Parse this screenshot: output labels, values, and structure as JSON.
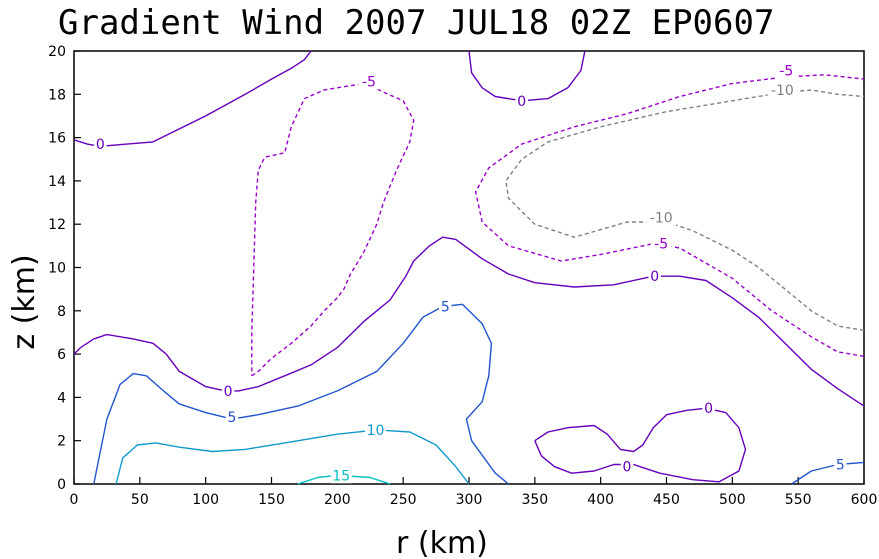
{
  "chart_data": {
    "type": "contour",
    "title": "Gradient Wind 2007 JUL18 02Z  EP0607",
    "xlabel": "r (km)",
    "ylabel": "z (km)",
    "xlim": [
      0,
      600
    ],
    "ylim": [
      0,
      20
    ],
    "x_ticks": [
      "0",
      "50",
      "100",
      "150",
      "200",
      "250",
      "300",
      "350",
      "400",
      "450",
      "500",
      "550",
      "600"
    ],
    "y_ticks": [
      "0",
      "2",
      "4",
      "6",
      "8",
      "10",
      "12",
      "14",
      "16",
      "18",
      "20"
    ],
    "colors": {
      "level_minus_10": "#808080",
      "level_minus_5": "#9900cc",
      "level_0": "#6600bb",
      "level_5": "#2255cc",
      "level_10": "#1199cc",
      "level_15": "#00c0c0"
    },
    "contours": [
      {
        "level": -10,
        "label": "-10",
        "dashed": true,
        "color_key": "level_minus_10",
        "points": [
          [
            600,
            7.1
          ],
          [
            580,
            7.3
          ],
          [
            560,
            8.0
          ],
          [
            540,
            9.0
          ],
          [
            520,
            10.0
          ],
          [
            500,
            10.8
          ],
          [
            470,
            11.7
          ],
          [
            450,
            12.1
          ],
          [
            420,
            12.1
          ],
          [
            380,
            11.4
          ],
          [
            350,
            12.0
          ],
          [
            330,
            13.2
          ],
          [
            328,
            14.0
          ],
          [
            340,
            15.0
          ],
          [
            360,
            15.8
          ],
          [
            400,
            16.5
          ],
          [
            450,
            17.2
          ],
          [
            500,
            17.7
          ],
          [
            540,
            18.1
          ],
          [
            560,
            18.2
          ],
          [
            580,
            18.0
          ],
          [
            600,
            17.9
          ]
        ],
        "labels": [
          {
            "x": 446,
            "y": 12.3,
            "text": "-10"
          },
          {
            "x": 538,
            "y": 18.2,
            "text": "-10"
          }
        ]
      },
      {
        "level": -5,
        "label": "-5",
        "dashed": true,
        "color_key": "level_minus_5",
        "points": [
          [
            600,
            5.9
          ],
          [
            580,
            6.1
          ],
          [
            560,
            6.8
          ],
          [
            530,
            8.0
          ],
          [
            500,
            9.5
          ],
          [
            460,
            10.9
          ],
          [
            440,
            11.1
          ],
          [
            400,
            10.6
          ],
          [
            370,
            10.3
          ],
          [
            330,
            11.0
          ],
          [
            310,
            12.1
          ],
          [
            305,
            13.5
          ],
          [
            315,
            14.6
          ],
          [
            340,
            15.7
          ],
          [
            380,
            16.5
          ],
          [
            420,
            17.1
          ],
          [
            460,
            17.9
          ],
          [
            500,
            18.5
          ],
          [
            540,
            18.8
          ],
          [
            570,
            18.9
          ],
          [
            600,
            18.7
          ]
        ],
        "labels": [
          {
            "x": 446,
            "y": 11.1,
            "text": "-5"
          },
          {
            "x": 541,
            "y": 19.1,
            "text": "-5"
          }
        ]
      },
      {
        "level": -5,
        "label": "-5",
        "dashed": true,
        "color_key": "level_minus_5",
        "points": [
          [
            135,
            5.0
          ],
          [
            140,
            5.2
          ],
          [
            150,
            5.8
          ],
          [
            165,
            6.5
          ],
          [
            180,
            7.3
          ],
          [
            190,
            8.0
          ],
          [
            200,
            8.6
          ],
          [
            205,
            9.0
          ],
          [
            210,
            9.7
          ],
          [
            220,
            10.7
          ],
          [
            230,
            12.0
          ],
          [
            235,
            13.0
          ],
          [
            245,
            14.5
          ],
          [
            255,
            15.8
          ],
          [
            258,
            16.8
          ],
          [
            250,
            17.7
          ],
          [
            235,
            18.1
          ],
          [
            222,
            18.5
          ],
          [
            210,
            18.4
          ],
          [
            190,
            18.2
          ],
          [
            175,
            17.8
          ],
          [
            165,
            16.5
          ],
          [
            160,
            15.3
          ],
          [
            145,
            15.1
          ],
          [
            140,
            14.5
          ],
          [
            138,
            13.0
          ],
          [
            137,
            11.0
          ],
          [
            136,
            9.0
          ],
          [
            135,
            7.0
          ],
          [
            135,
            5.0
          ]
        ],
        "labels": [
          {
            "x": 224,
            "y": 18.6,
            "text": "-5"
          }
        ]
      },
      {
        "level": 0,
        "label": "0",
        "dashed": false,
        "color_key": "level_0",
        "points": [
          [
            0,
            6.0
          ],
          [
            5,
            6.3
          ],
          [
            15,
            6.7
          ],
          [
            25,
            6.9
          ],
          [
            45,
            6.7
          ],
          [
            60,
            6.5
          ],
          [
            70,
            6.0
          ],
          [
            80,
            5.2
          ],
          [
            100,
            4.5
          ],
          [
            115,
            4.3
          ],
          [
            125,
            4.3
          ],
          [
            140,
            4.5
          ],
          [
            160,
            5.0
          ],
          [
            180,
            5.5
          ],
          [
            200,
            6.3
          ],
          [
            220,
            7.5
          ],
          [
            240,
            8.5
          ],
          [
            252,
            9.6
          ],
          [
            258,
            10.3
          ],
          [
            270,
            11.0
          ],
          [
            280,
            11.4
          ],
          [
            290,
            11.3
          ],
          [
            310,
            10.4
          ],
          [
            330,
            9.7
          ],
          [
            350,
            9.3
          ],
          [
            380,
            9.1
          ],
          [
            410,
            9.2
          ],
          [
            440,
            9.6
          ],
          [
            460,
            9.6
          ],
          [
            480,
            9.4
          ],
          [
            500,
            8.6
          ],
          [
            520,
            7.7
          ],
          [
            540,
            6.5
          ],
          [
            560,
            5.3
          ],
          [
            580,
            4.4
          ],
          [
            600,
            3.6
          ]
        ],
        "labels": [
          {
            "x": 117,
            "y": 4.3,
            "text": "0"
          },
          {
            "x": 441,
            "y": 9.6,
            "text": "0"
          }
        ]
      },
      {
        "level": 0,
        "label": "0",
        "dashed": false,
        "color_key": "level_0",
        "points": [
          [
            0,
            15.9
          ],
          [
            10,
            15.7
          ],
          [
            20,
            15.6
          ],
          [
            40,
            15.7
          ],
          [
            60,
            15.8
          ],
          [
            80,
            16.4
          ],
          [
            100,
            17.0
          ],
          [
            115,
            17.5
          ],
          [
            130,
            18.0
          ],
          [
            150,
            18.7
          ],
          [
            165,
            19.2
          ],
          [
            175,
            19.6
          ],
          [
            180,
            20.0
          ]
        ],
        "labels": [
          {
            "x": 20,
            "y": 15.7,
            "text": "0"
          }
        ]
      },
      {
        "level": 0,
        "label": "0",
        "dashed": false,
        "color_key": "level_0",
        "points": [
          [
            300,
            20.0
          ],
          [
            302,
            19.0
          ],
          [
            310,
            18.3
          ],
          [
            320,
            17.9
          ],
          [
            340,
            17.7
          ],
          [
            360,
            17.8
          ],
          [
            375,
            18.3
          ],
          [
            385,
            19.1
          ],
          [
            388,
            20.0
          ]
        ],
        "labels": [
          {
            "x": 340,
            "y": 17.7,
            "text": "0"
          }
        ]
      },
      {
        "level": 0,
        "label": "0",
        "dashed": false,
        "color_key": "level_0",
        "points": [
          [
            350,
            2.0
          ],
          [
            355,
            1.3
          ],
          [
            365,
            0.8
          ],
          [
            378,
            0.5
          ],
          [
            395,
            0.6
          ],
          [
            410,
            0.9
          ],
          [
            425,
            0.9
          ],
          [
            445,
            0.5
          ],
          [
            470,
            0.2
          ],
          [
            490,
            0.1
          ],
          [
            505,
            0.6
          ],
          [
            510,
            1.6
          ],
          [
            505,
            2.6
          ],
          [
            495,
            3.3
          ],
          [
            480,
            3.5
          ],
          [
            465,
            3.4
          ],
          [
            450,
            3.2
          ],
          [
            440,
            2.6
          ],
          [
            432,
            1.8
          ],
          [
            425,
            1.5
          ],
          [
            415,
            1.6
          ],
          [
            405,
            2.3
          ],
          [
            395,
            2.7
          ],
          [
            375,
            2.6
          ],
          [
            360,
            2.4
          ],
          [
            350,
            2.0
          ]
        ],
        "labels": [
          {
            "x": 420,
            "y": 0.8,
            "text": "0"
          },
          {
            "x": 482,
            "y": 3.5,
            "text": "0"
          }
        ]
      },
      {
        "level": 5,
        "label": "5",
        "dashed": false,
        "color_key": "level_5",
        "points": [
          [
            15,
            0.0
          ],
          [
            20,
            1.5
          ],
          [
            25,
            3.0
          ],
          [
            35,
            4.6
          ],
          [
            45,
            5.1
          ],
          [
            55,
            5.0
          ],
          [
            68,
            4.3
          ],
          [
            80,
            3.7
          ],
          [
            100,
            3.3
          ],
          [
            120,
            3.0
          ],
          [
            140,
            3.2
          ],
          [
            170,
            3.6
          ],
          [
            200,
            4.3
          ],
          [
            230,
            5.2
          ],
          [
            250,
            6.5
          ],
          [
            265,
            7.7
          ],
          [
            280,
            8.2
          ],
          [
            295,
            8.3
          ],
          [
            310,
            7.4
          ],
          [
            317,
            6.5
          ],
          [
            315,
            5.0
          ],
          [
            310,
            3.8
          ],
          [
            298,
            3.0
          ],
          [
            302,
            2.0
          ],
          [
            320,
            0.5
          ],
          [
            330,
            0.0
          ]
        ],
        "labels": [
          {
            "x": 120,
            "y": 3.1,
            "text": "5"
          },
          {
            "x": 282,
            "y": 8.2,
            "text": "5"
          }
        ]
      },
      {
        "level": 5,
        "label": "5",
        "dashed": false,
        "color_key": "level_5",
        "points": [
          [
            545,
            0.0
          ],
          [
            560,
            0.6
          ],
          [
            580,
            0.9
          ],
          [
            600,
            1.0
          ]
        ],
        "labels": [
          {
            "x": 582,
            "y": 0.9,
            "text": "5"
          }
        ]
      },
      {
        "level": 10,
        "label": "10",
        "dashed": false,
        "color_key": "level_10",
        "points": [
          [
            32,
            0.0
          ],
          [
            37,
            1.2
          ],
          [
            48,
            1.8
          ],
          [
            62,
            1.9
          ],
          [
            80,
            1.7
          ],
          [
            105,
            1.5
          ],
          [
            130,
            1.6
          ],
          [
            160,
            1.9
          ],
          [
            200,
            2.3
          ],
          [
            230,
            2.5
          ],
          [
            255,
            2.4
          ],
          [
            275,
            1.8
          ],
          [
            290,
            0.8
          ],
          [
            300,
            0.0
          ]
        ],
        "labels": [
          {
            "x": 229,
            "y": 2.5,
            "text": "10"
          }
        ]
      },
      {
        "level": 15,
        "label": "15",
        "dashed": false,
        "color_key": "level_15",
        "points": [
          [
            170,
            0.0
          ],
          [
            185,
            0.3
          ],
          [
            200,
            0.4
          ],
          [
            225,
            0.3
          ],
          [
            240,
            0.0
          ]
        ],
        "labels": [
          {
            "x": 203,
            "y": 0.4,
            "text": "15"
          }
        ]
      }
    ]
  }
}
